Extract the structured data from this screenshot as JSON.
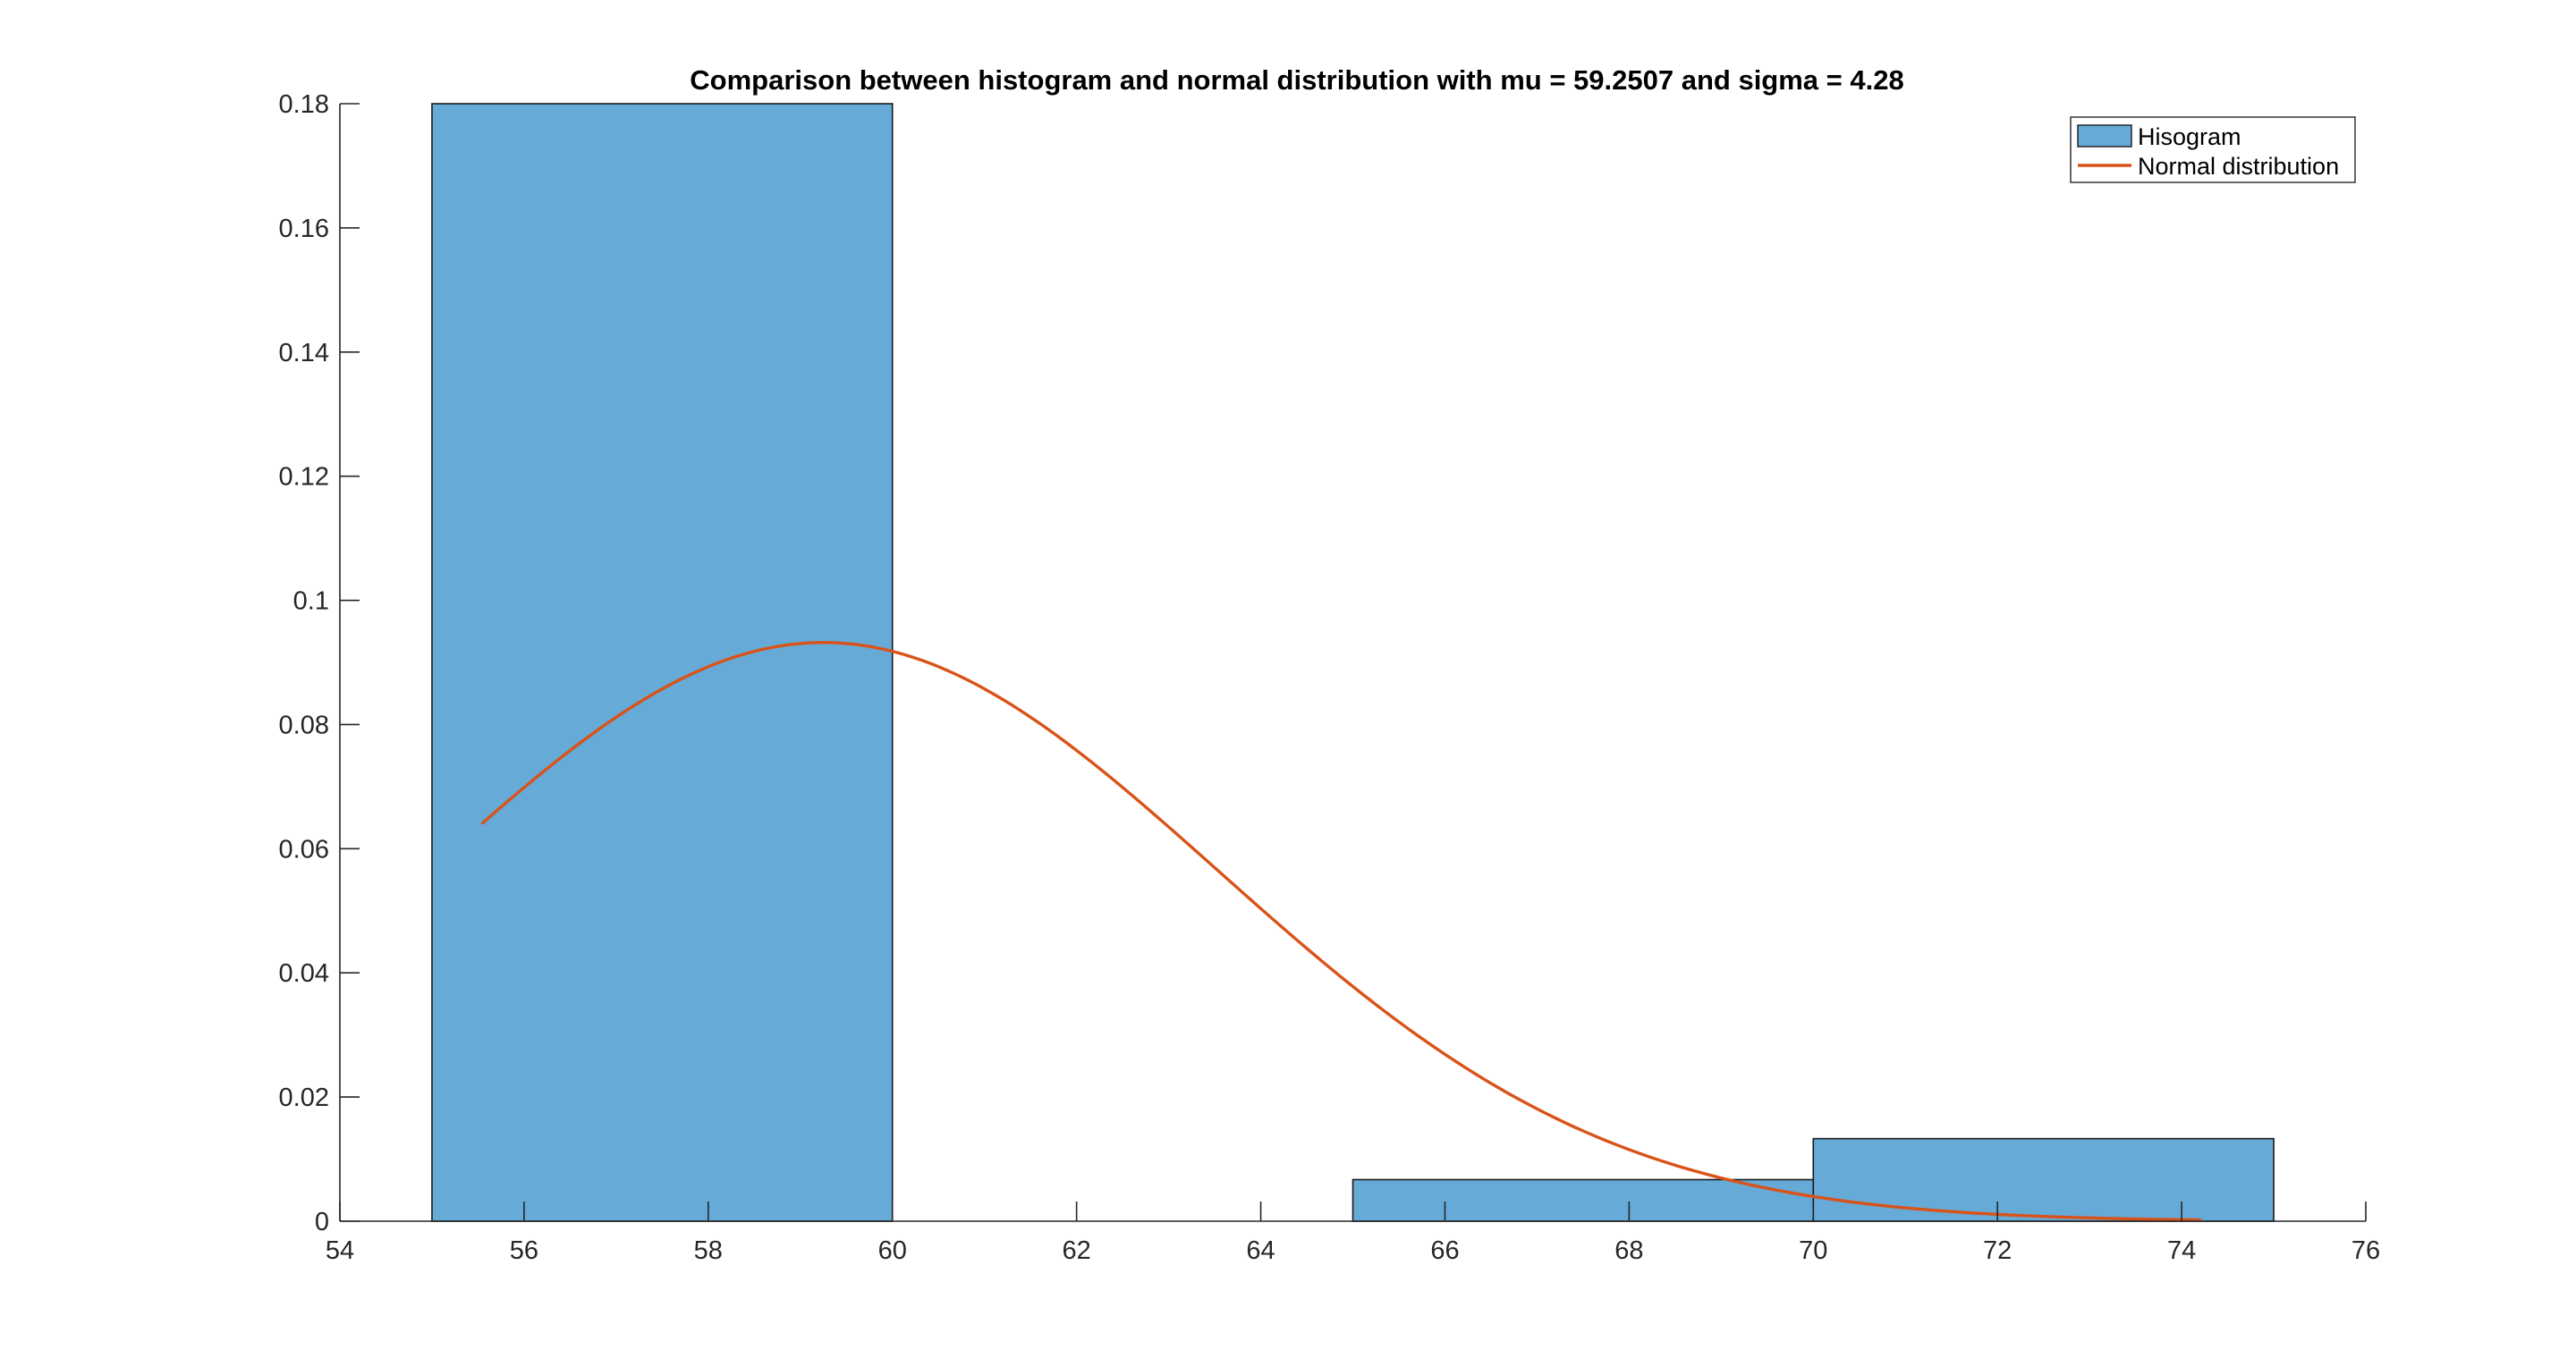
{
  "chart_data": {
    "type": "bar",
    "title": "Comparison between histogram and normal distribution with mu = 59.2507 and sigma = 4.28",
    "xlabel": "",
    "ylabel": "",
    "xlim": [
      54,
      76
    ],
    "ylim": [
      0,
      0.18
    ],
    "xticks": [
      54,
      56,
      58,
      60,
      62,
      64,
      66,
      68,
      70,
      72,
      74,
      76
    ],
    "yticks": [
      0,
      0.02,
      0.04,
      0.06,
      0.08,
      0.1,
      0.12,
      0.14,
      0.16,
      0.18
    ],
    "ytick_labels": [
      "0",
      "0.02",
      "0.04",
      "0.06",
      "0.08",
      "0.1",
      "0.12",
      "0.14",
      "0.16",
      "0.18"
    ],
    "grid": false,
    "legend_position": "top-right",
    "series": [
      {
        "name": "Hisogram",
        "kind": "histogram",
        "color": "#66aad7",
        "edge_color": "#1a1a1a",
        "bins": [
          {
            "start": 55,
            "end": 60,
            "value": 0.18
          },
          {
            "start": 60,
            "end": 65,
            "value": 0
          },
          {
            "start": 65,
            "end": 70,
            "value": 0.0067
          },
          {
            "start": 70,
            "end": 75,
            "value": 0.0133
          }
        ]
      },
      {
        "name": "Normal distribution",
        "kind": "line",
        "color": "#d95319",
        "mu": 59.2507,
        "sigma": 4.28,
        "x_range": [
          55.55,
          74.2
        ]
      }
    ]
  }
}
